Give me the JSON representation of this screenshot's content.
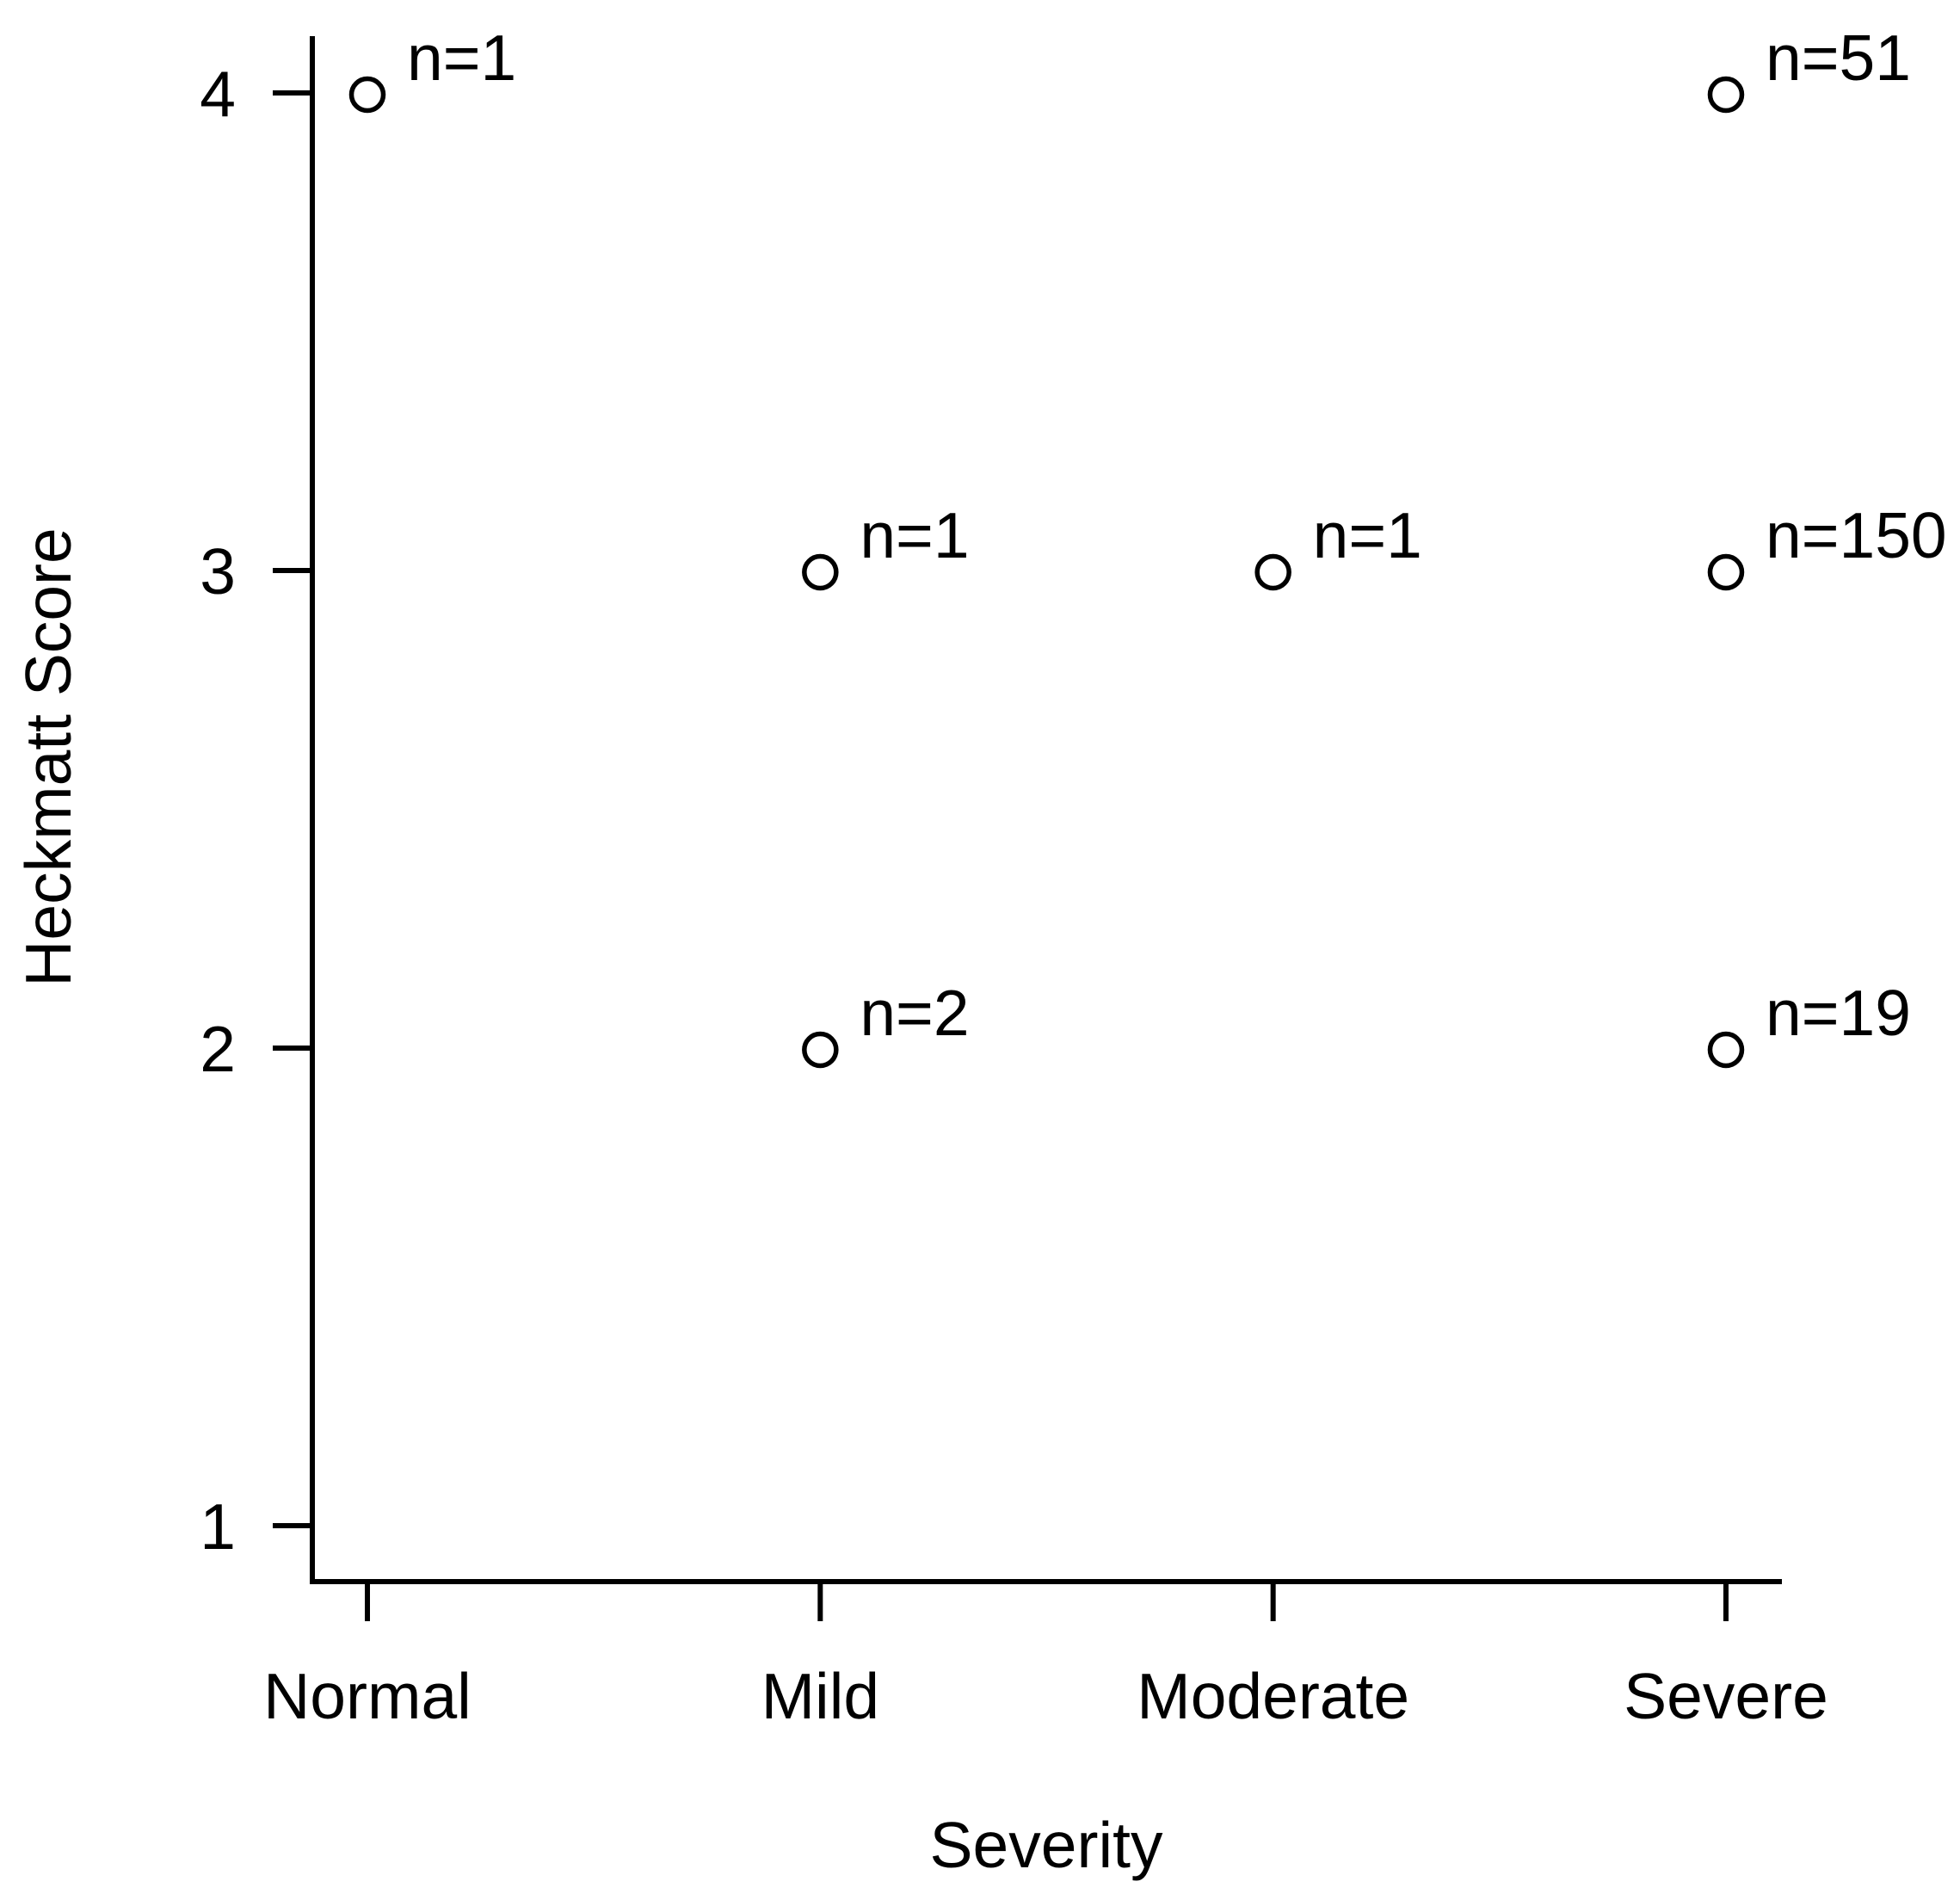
{
  "chart_data": {
    "type": "scatter",
    "title": "",
    "xlabel": "Severity",
    "ylabel": "Heckmatt Score",
    "categories": [
      "Normal",
      "Mild",
      "Moderate",
      "Severe"
    ],
    "y_ticks": [
      1,
      2,
      3,
      4
    ],
    "ylim": [
      1,
      4
    ],
    "grid": false,
    "legend": "none",
    "marker": "open-circle",
    "colors": {
      "stroke": "#000000",
      "background": "#ffffff"
    },
    "points": [
      {
        "severity": "Normal",
        "score": 4,
        "n": 1,
        "label": "n=1"
      },
      {
        "severity": "Mild",
        "score": 3,
        "n": 1,
        "label": "n=1"
      },
      {
        "severity": "Mild",
        "score": 2,
        "n": 2,
        "label": "n=2"
      },
      {
        "severity": "Moderate",
        "score": 3,
        "n": 1,
        "label": "n=1"
      },
      {
        "severity": "Severe",
        "score": 4,
        "n": 51,
        "label": "n=51"
      },
      {
        "severity": "Severe",
        "score": 3,
        "n": 150,
        "label": "n=150"
      },
      {
        "severity": "Severe",
        "score": 2,
        "n": 19,
        "label": "n=19"
      }
    ]
  }
}
